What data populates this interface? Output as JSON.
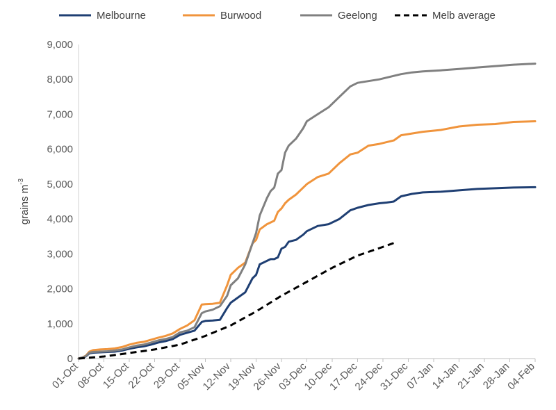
{
  "chart_data": {
    "type": "line",
    "title": "",
    "xlabel": "",
    "ylabel": "grains m",
    "ylabel_superscript": "-3",
    "ylim": [
      0,
      9000
    ],
    "y_ticks": [
      0,
      1000,
      2000,
      3000,
      4000,
      5000,
      6000,
      7000,
      8000,
      9000
    ],
    "y_tick_labels": [
      "0",
      "1,000",
      "2,000",
      "3,000",
      "4,000",
      "5,000",
      "6,000",
      "7,000",
      "8,000",
      "9,000"
    ],
    "x_unit": "days since 01-Oct",
    "xlim": [
      0,
      126
    ],
    "x_ticks": [
      0,
      7,
      14,
      21,
      28,
      35,
      42,
      49,
      56,
      63,
      70,
      77,
      84,
      91,
      98,
      105,
      112,
      119,
      126
    ],
    "x_tick_labels": [
      "01-Oct",
      "08-Oct",
      "15-Oct",
      "22-Oct",
      "29-Oct",
      "05-Nov",
      "12-Nov",
      "19-Nov",
      "26-Nov",
      "03-Dec",
      "10-Dec",
      "17-Dec",
      "24-Dec",
      "31-Dec",
      "07-Jan",
      "14-Jan",
      "21-Jan",
      "28-Jan",
      "04-Feb"
    ],
    "legend_position": "top",
    "series": [
      {
        "name": "Melbourne",
        "color": "#1f3f73",
        "dash": "solid",
        "x": [
          0,
          1,
          2,
          3,
          4,
          6,
          8,
          10,
          12,
          14,
          16,
          18,
          20,
          22,
          24,
          26,
          28,
          30,
          32,
          34,
          35,
          37,
          39,
          41,
          42,
          44,
          46,
          48,
          49,
          50,
          52,
          53,
          54,
          55,
          56,
          57,
          58,
          60,
          62,
          63,
          66,
          69,
          72,
          75,
          77,
          80,
          83,
          85,
          87,
          89,
          92,
          95,
          100,
          105,
          110,
          115,
          120,
          126
        ],
        "y": [
          0,
          30,
          60,
          150,
          170,
          180,
          190,
          200,
          230,
          280,
          320,
          350,
          400,
          460,
          500,
          560,
          680,
          740,
          800,
          1050,
          1080,
          1090,
          1110,
          1450,
          1600,
          1750,
          1900,
          2300,
          2400,
          2700,
          2800,
          2850,
          2850,
          2900,
          3150,
          3200,
          3350,
          3400,
          3550,
          3650,
          3800,
          3850,
          4000,
          4250,
          4320,
          4400,
          4450,
          4470,
          4500,
          4650,
          4720,
          4760,
          4780,
          4820,
          4860,
          4880,
          4900,
          4910
        ]
      },
      {
        "name": "Burwood",
        "color": "#f0943c",
        "dash": "solid",
        "x": [
          0,
          1,
          2,
          3,
          4,
          6,
          8,
          10,
          12,
          14,
          16,
          18,
          20,
          22,
          24,
          26,
          28,
          30,
          32,
          34,
          35,
          37,
          39,
          41,
          42,
          44,
          46,
          48,
          49,
          50,
          52,
          53,
          54,
          55,
          56,
          57,
          58,
          60,
          62,
          63,
          66,
          69,
          72,
          75,
          77,
          80,
          83,
          85,
          87,
          89,
          92,
          95,
          100,
          105,
          110,
          115,
          120,
          126
        ],
        "y": [
          0,
          30,
          80,
          200,
          240,
          260,
          270,
          290,
          330,
          400,
          450,
          480,
          540,
          600,
          650,
          720,
          850,
          950,
          1100,
          1550,
          1560,
          1570,
          1600,
          2100,
          2400,
          2600,
          2750,
          3300,
          3400,
          3700,
          3850,
          3900,
          3950,
          4200,
          4300,
          4450,
          4550,
          4700,
          4900,
          5000,
          5200,
          5300,
          5600,
          5850,
          5900,
          6100,
          6150,
          6200,
          6250,
          6400,
          6450,
          6500,
          6550,
          6650,
          6700,
          6720,
          6780,
          6800
        ]
      },
      {
        "name": "Geelong",
        "color": "#808080",
        "dash": "solid",
        "x": [
          0,
          1,
          2,
          3,
          4,
          6,
          8,
          10,
          12,
          14,
          16,
          18,
          20,
          22,
          24,
          26,
          28,
          30,
          32,
          34,
          35,
          37,
          39,
          41,
          42,
          44,
          46,
          48,
          49,
          50,
          52,
          53,
          54,
          55,
          56,
          57,
          58,
          60,
          62,
          63,
          66,
          69,
          72,
          75,
          77,
          80,
          83,
          85,
          87,
          89,
          92,
          95,
          100,
          105,
          110,
          115,
          120,
          126
        ],
        "y": [
          0,
          30,
          70,
          170,
          190,
          200,
          210,
          230,
          260,
          320,
          370,
          400,
          460,
          520,
          560,
          620,
          750,
          800,
          900,
          1300,
          1350,
          1400,
          1500,
          1800,
          2100,
          2300,
          2700,
          3300,
          3600,
          4100,
          4600,
          4800,
          4900,
          5300,
          5400,
          5900,
          6100,
          6300,
          6600,
          6800,
          7000,
          7200,
          7500,
          7800,
          7900,
          7950,
          8000,
          8050,
          8100,
          8150,
          8200,
          8230,
          8260,
          8300,
          8340,
          8380,
          8420,
          8450
        ]
      },
      {
        "name": "Melb average",
        "color": "#000000",
        "dash": "dashed",
        "x": [
          0,
          7,
          14,
          21,
          28,
          35,
          42,
          49,
          56,
          63,
          70,
          77,
          84,
          88
        ],
        "y": [
          0,
          60,
          160,
          260,
          400,
          650,
          950,
          1350,
          1800,
          2200,
          2600,
          2950,
          3200,
          3350
        ]
      }
    ]
  }
}
